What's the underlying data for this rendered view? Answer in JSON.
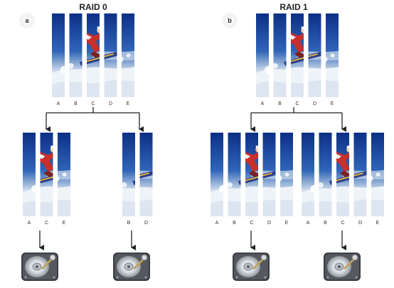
{
  "panels": [
    {
      "badge": "a",
      "title": "RAID 0",
      "source_strips": [
        "A",
        "B",
        "C",
        "D",
        "E"
      ],
      "drives": [
        {
          "strips": [
            "A",
            "C",
            "E"
          ]
        },
        {
          "strips": [
            "B",
            "D"
          ]
        }
      ]
    },
    {
      "badge": "b",
      "title": "RAID 1",
      "source_strips": [
        "A",
        "B",
        "C",
        "D",
        "E"
      ],
      "drives": [
        {
          "strips": [
            "A",
            "B",
            "C",
            "D",
            "E"
          ]
        },
        {
          "strips": [
            "A",
            "B",
            "C",
            "D",
            "E"
          ]
        }
      ]
    }
  ],
  "colors": {
    "sky_top": "#0d2f86",
    "sky_mid": "#2f64b8",
    "snow": "#eef3f8",
    "snowboarder_jacket": "#c8302c",
    "board": "#2a3f8a",
    "line": "#222222",
    "badge_fill": "#f0f0f0"
  },
  "icons": {
    "drive": "hard-drive-icon",
    "arrow": "arrow-down-icon"
  }
}
